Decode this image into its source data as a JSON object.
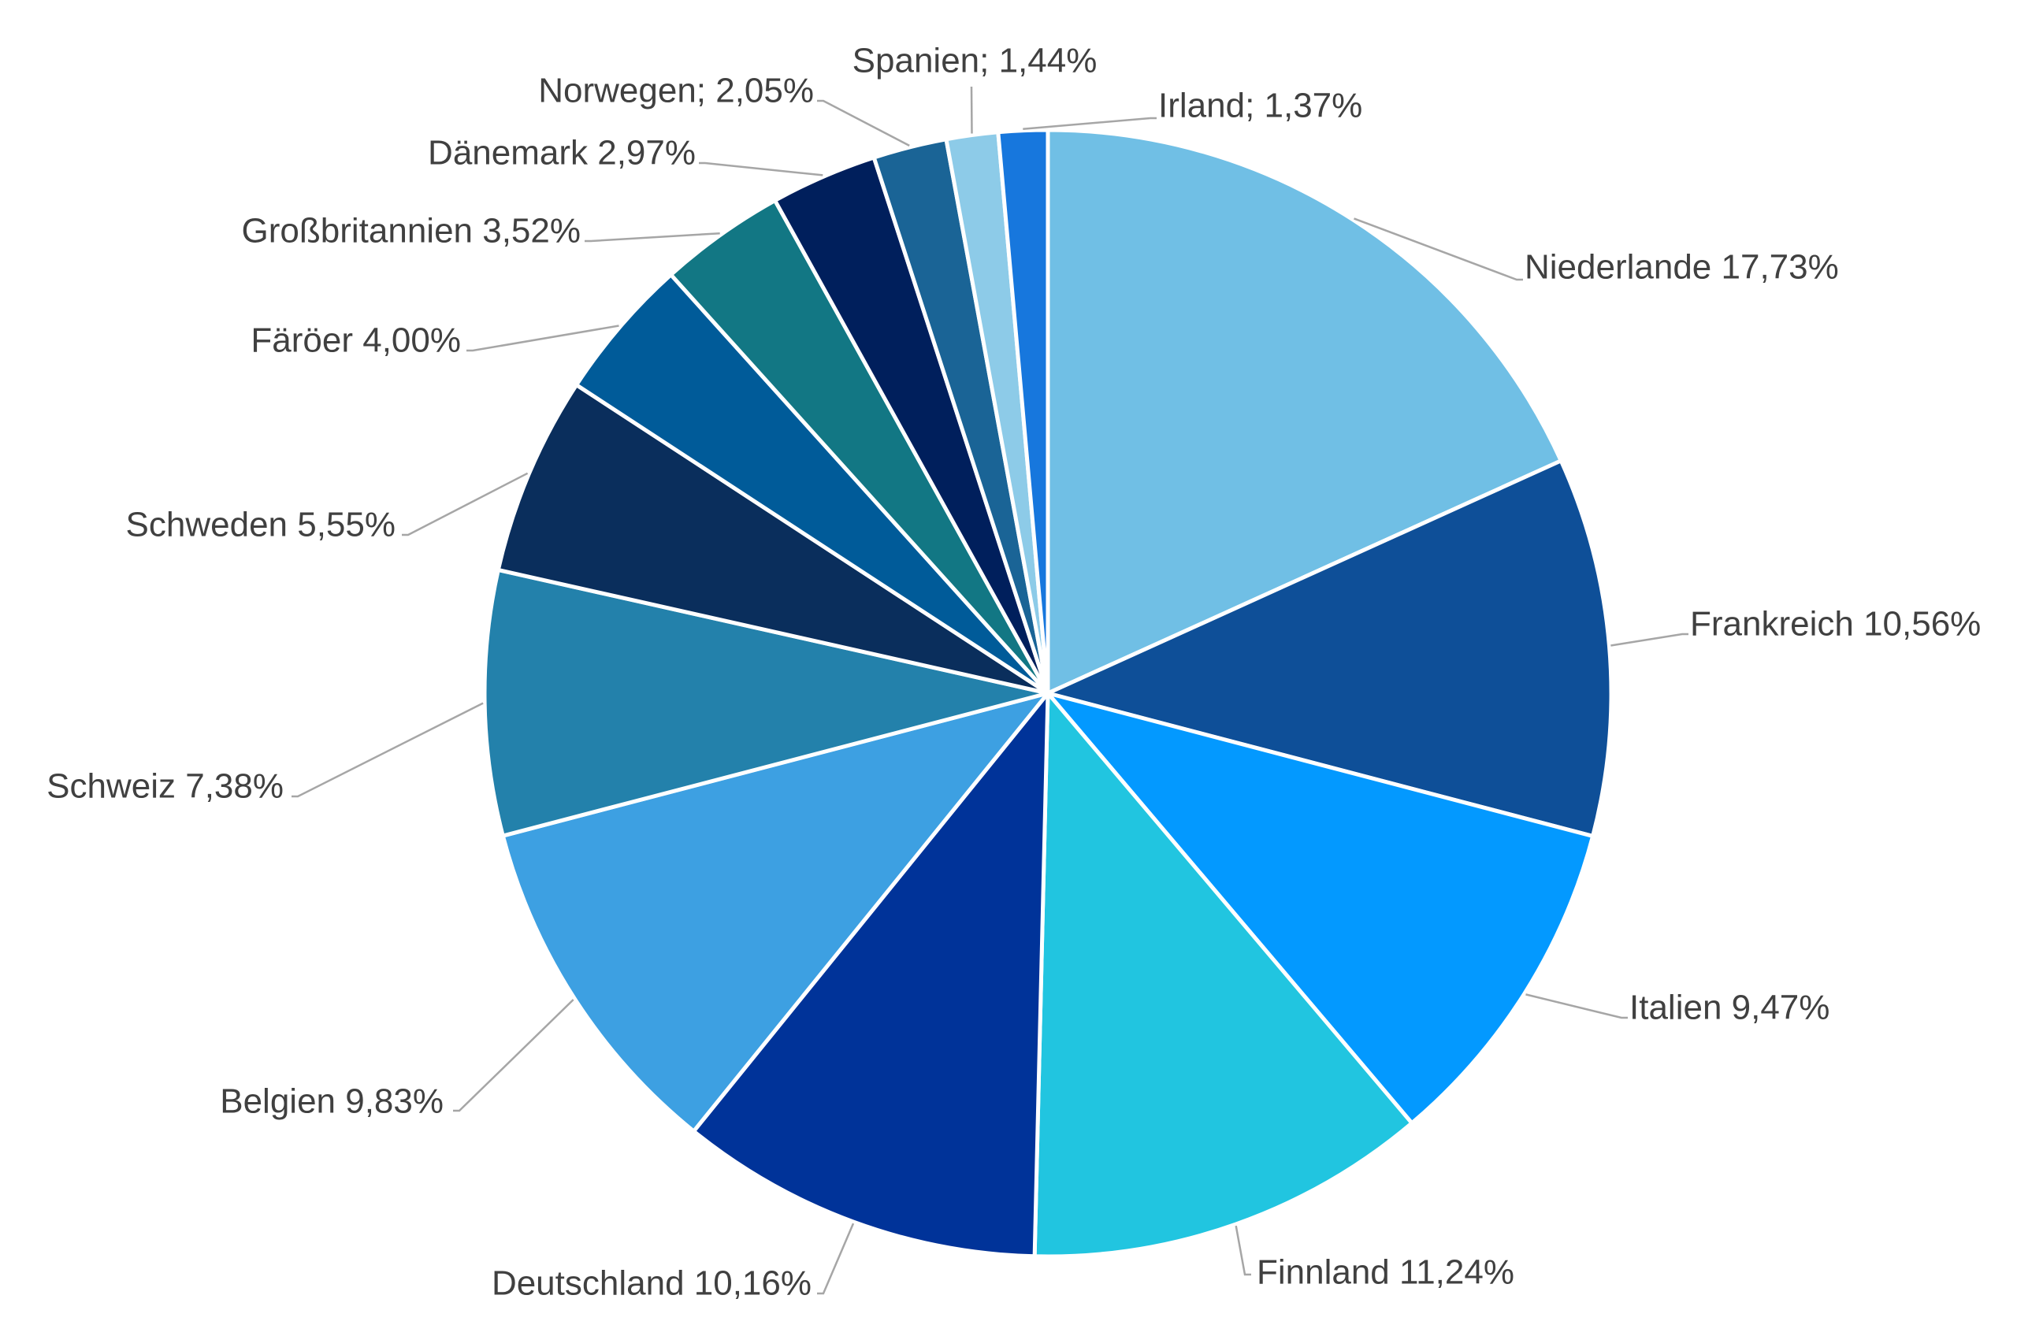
{
  "chart_data": {
    "type": "pie",
    "title": "",
    "legend": "none",
    "start": "top",
    "direction": "clockwise",
    "slices": [
      {
        "name": "Niederlande",
        "value": 17.73,
        "label": "Niederlande 17,73%",
        "color": "#70BFE5"
      },
      {
        "name": "Frankreich",
        "value": 10.56,
        "label": "Frankreich 10,56%",
        "color": "#0E4F98"
      },
      {
        "name": "Italien",
        "value": 9.47,
        "label": "Italien 9,47%",
        "color": "#0399FF"
      },
      {
        "name": "Finnland",
        "value": 11.24,
        "label": "Finnland 11,24%",
        "color": "#21C5E0"
      },
      {
        "name": "Deutschland",
        "value": 10.16,
        "label": "Deutschland 10,16%",
        "color": "#003399"
      },
      {
        "name": "Belgien",
        "value": 9.83,
        "label": "Belgien 9,83%",
        "color": "#3DA0E2"
      },
      {
        "name": "Schweiz",
        "value": 7.38,
        "label": "Schweiz 7,38%",
        "color": "#2381AB"
      },
      {
        "name": "Schweden",
        "value": 5.55,
        "label": "Schweden 5,55%",
        "color": "#0A2E5C"
      },
      {
        "name": "Färöer",
        "value": 4.0,
        "label": "Färöer 4,00%",
        "color": "#005B99"
      },
      {
        "name": "Großbritannien",
        "value": 3.52,
        "label": "Großbritannien 3,52%",
        "color": "#127784"
      },
      {
        "name": "Dänemark",
        "value": 2.97,
        "label": "Dänemark 2,97%",
        "color": "#001F5C"
      },
      {
        "name": "Norwegen",
        "value": 2.05,
        "label": "Norwegen; 2,05%",
        "color": "#1A6496"
      },
      {
        "name": "Spanien",
        "value": 1.44,
        "label": "Spanien; 1,44%",
        "color": "#8DCBE8"
      },
      {
        "name": "Irland",
        "value": 1.37,
        "label": "Irland; 1,37%",
        "color": "#1777DD"
      }
    ]
  }
}
